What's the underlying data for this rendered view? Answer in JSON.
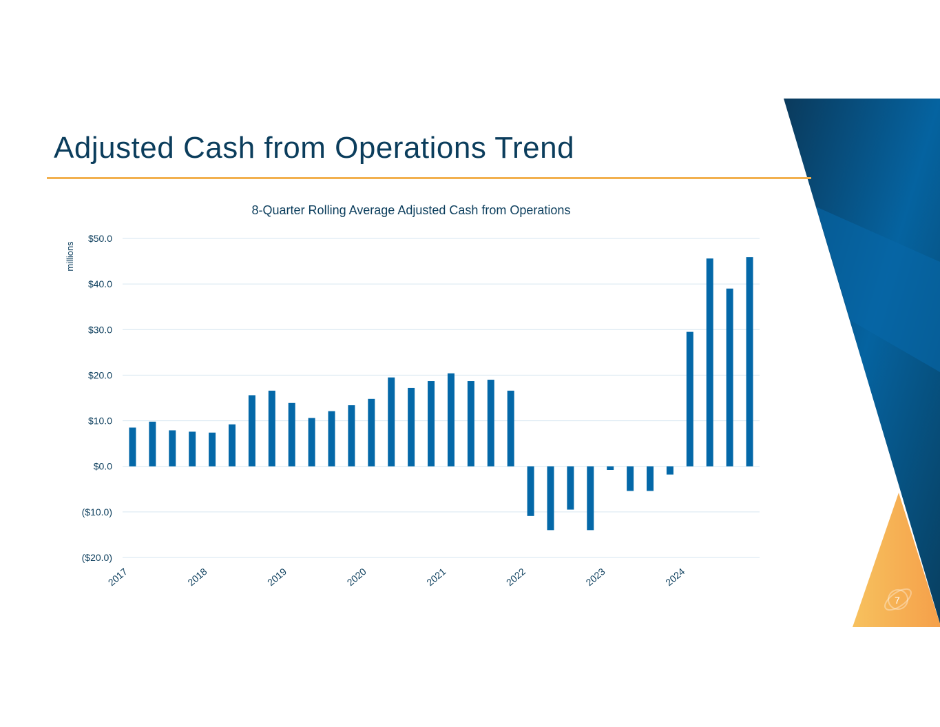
{
  "slide": {
    "title": "Adjusted Cash from Operations Trend",
    "page_number": "7"
  },
  "colors": {
    "bar": "#0468a8",
    "title": "#0b3d5c",
    "rule": "#f2b04e",
    "grid": "#d6e6f0"
  },
  "chart_data": {
    "type": "bar",
    "title": "8-Quarter Rolling Average Adjusted Cash from Operations",
    "ylabel": "millions",
    "xlabel": "",
    "ylim": [
      -20,
      50
    ],
    "yticks": [
      50,
      40,
      30,
      20,
      10,
      0,
      -10,
      -20
    ],
    "ytick_labels": [
      "$50.0",
      "$40.0",
      "$30.0",
      "$20.0",
      "$10.0",
      "$0.0",
      "($10.0)",
      "($20.0)"
    ],
    "xtick_labels": [
      "2017",
      "2018",
      "2019",
      "2020",
      "2021",
      "2022",
      "2023",
      "2024"
    ],
    "grid": true,
    "values": [
      8.5,
      9.8,
      7.9,
      7.6,
      7.4,
      9.2,
      15.6,
      16.6,
      13.9,
      10.6,
      12.1,
      13.4,
      14.8,
      19.5,
      17.2,
      18.7,
      20.4,
      18.7,
      19.0,
      16.6,
      -10.9,
      -14.0,
      -9.5,
      -14.0,
      -0.8,
      -5.4,
      -5.4,
      -1.8,
      29.5,
      45.6,
      39.0,
      45.9
    ]
  }
}
